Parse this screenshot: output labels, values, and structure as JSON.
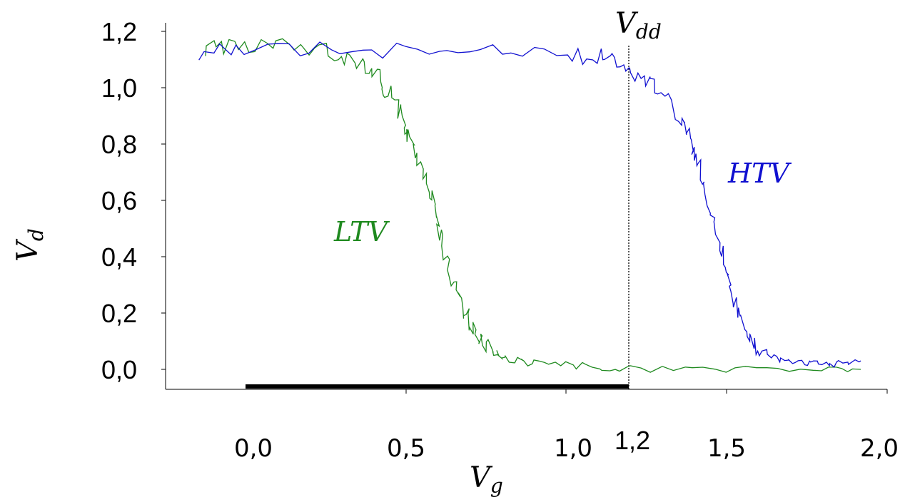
{
  "chart_data": {
    "type": "line",
    "xlabel": "V",
    "xlabel_sub": "g",
    "ylabel": "V",
    "ylabel_sub": "d",
    "xlim": [
      -0.5,
      2.0
    ],
    "ylim": [
      -0.07,
      1.25
    ],
    "x_ticks": [
      {
        "value": 0.0,
        "label": "0,0"
      },
      {
        "value": 0.5,
        "label": "0,5"
      },
      {
        "value": 1.0,
        "label": "1,0"
      },
      {
        "value": 1.5,
        "label": "1,5"
      },
      {
        "value": 2.0,
        "label": "2,0"
      }
    ],
    "y_ticks": [
      {
        "value": 0.0,
        "label": "0,0"
      },
      {
        "value": 0.2,
        "label": "0,2"
      },
      {
        "value": 0.4,
        "label": "0,4"
      },
      {
        "value": 0.6,
        "label": "0,6"
      },
      {
        "value": 0.8,
        "label": "0,8"
      },
      {
        "value": 1.0,
        "label": "1,0"
      },
      {
        "value": 1.2,
        "label": "1,2"
      }
    ],
    "grid": false,
    "series": [
      {
        "name": "LTV",
        "color": "#1f8a1f",
        "x": [
          -0.13,
          -0.05,
          0.05,
          0.15,
          0.25,
          0.32,
          0.38,
          0.42,
          0.45,
          0.48,
          0.5,
          0.52,
          0.55,
          0.58,
          0.6,
          0.62,
          0.65,
          0.68,
          0.7,
          0.72,
          0.75,
          0.78,
          0.8,
          0.85,
          0.9,
          1.0,
          1.1,
          1.2,
          1.4,
          1.6,
          1.8,
          1.92
        ],
        "y": [
          1.14,
          1.15,
          1.15,
          1.14,
          1.13,
          1.11,
          1.08,
          1.03,
          0.98,
          0.92,
          0.86,
          0.8,
          0.72,
          0.62,
          0.52,
          0.42,
          0.3,
          0.22,
          0.17,
          0.13,
          0.09,
          0.06,
          0.04,
          0.03,
          0.02,
          0.015,
          0.01,
          0.0,
          0.0,
          0.0,
          0.0,
          0.0
        ]
      },
      {
        "name": "HTV",
        "color": "#1010d0",
        "x": [
          -0.15,
          0.0,
          0.2,
          0.4,
          0.6,
          0.8,
          1.0,
          1.1,
          1.15,
          1.2,
          1.25,
          1.3,
          1.35,
          1.38,
          1.4,
          1.42,
          1.45,
          1.48,
          1.5,
          1.52,
          1.55,
          1.58,
          1.6,
          1.65,
          1.7,
          1.75,
          1.8,
          1.85,
          1.92
        ],
        "y": [
          1.13,
          1.14,
          1.14,
          1.13,
          1.13,
          1.13,
          1.12,
          1.11,
          1.09,
          1.06,
          1.03,
          0.98,
          0.9,
          0.84,
          0.78,
          0.7,
          0.58,
          0.45,
          0.35,
          0.26,
          0.17,
          0.1,
          0.07,
          0.04,
          0.03,
          0.025,
          0.02,
          0.02,
          0.03
        ]
      }
    ],
    "annotations": {
      "vdd": {
        "label": "V",
        "label_sub": "dd",
        "x": 1.2
      },
      "vdd_tick": {
        "label": "1,2",
        "x": 1.2
      },
      "bar": {
        "x_start": 0.0,
        "x_end": 1.2,
        "y": -0.07
      }
    }
  }
}
